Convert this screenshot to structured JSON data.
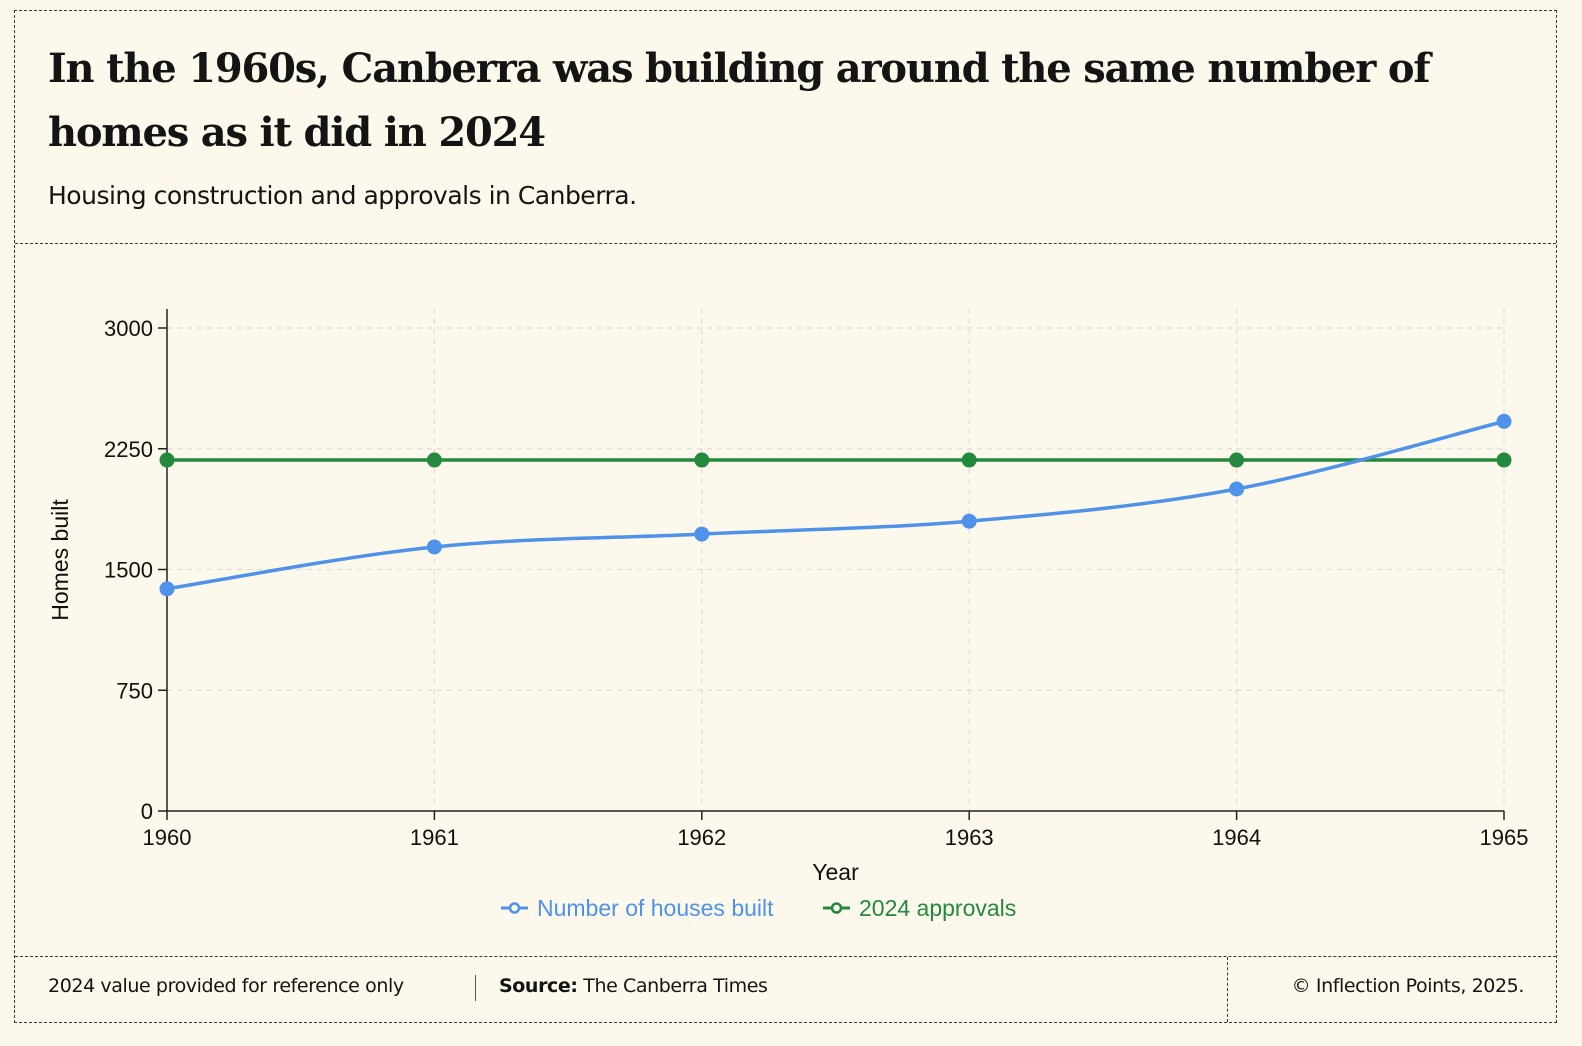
{
  "header": {
    "title": "In the 1960s, Canberra was building around the same number of homes as it did in 2024",
    "subtitle": "Housing construction and approvals in Canberra."
  },
  "footer": {
    "note": "2024 value provided for reference only",
    "source_label": "Source:",
    "source_value": "The Canberra Times",
    "credit": "© Inflection Points, 2025."
  },
  "colors": {
    "background": "#fdf8ec",
    "built": "#4f92ea",
    "approvals": "#23893d",
    "axis": "#222222",
    "grid": "#dcdcdc"
  },
  "chart_data": {
    "type": "line",
    "x": [
      1960,
      1961,
      1962,
      1963,
      1964,
      1965
    ],
    "x_tick_labels": [
      "1960",
      "1961",
      "1962",
      "1963",
      "1964",
      "1965"
    ],
    "y_ticks": [
      0,
      750,
      1500,
      2250,
      3000
    ],
    "y_tick_labels": [
      "0",
      "750",
      "1500",
      "2250",
      "3000"
    ],
    "xlabel": "Year",
    "ylabel": "Homes built",
    "xlim": [
      1960,
      1965
    ],
    "ylim": [
      0,
      3000
    ],
    "grid": true,
    "legend_position": "bottom-center",
    "series": [
      {
        "name": "Number of houses built",
        "color": "#4f92ea",
        "values": [
          1380,
          1640,
          1720,
          1800,
          2000,
          2420
        ]
      },
      {
        "name": "2024 approvals",
        "color": "#23893d",
        "values": [
          2180,
          2180,
          2180,
          2180,
          2180,
          2180
        ]
      }
    ]
  }
}
